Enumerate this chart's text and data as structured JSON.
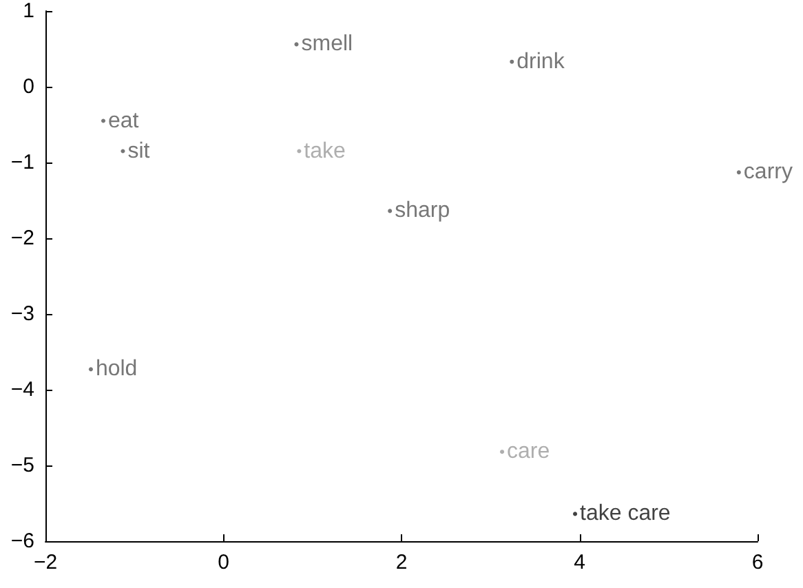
{
  "chart_data": {
    "type": "scatter",
    "marker": "circle",
    "grid": false,
    "legend": false,
    "xlim": [
      -2,
      6
    ],
    "xticks": [
      -2,
      0,
      2,
      4,
      6
    ],
    "ylim": [
      -6,
      1
    ],
    "yticks": [
      -6,
      -5,
      -4,
      -3,
      -2,
      -1,
      0,
      1
    ],
    "series": [
      {
        "name": "smell",
        "color": "#555555",
        "x": [
          0.82
        ],
        "values": [
          0.56
        ]
      },
      {
        "name": "drink",
        "color": "#555555",
        "x": [
          3.24
        ],
        "values": [
          0.33
        ]
      },
      {
        "name": "eat",
        "color": "#555555",
        "x": [
          -1.35
        ],
        "values": [
          -0.45
        ]
      },
      {
        "name": "sit",
        "color": "#555555",
        "x": [
          -1.13
        ],
        "values": [
          -0.85
        ]
      },
      {
        "name": "take",
        "color": "#9a9a9a",
        "x": [
          0.85
        ],
        "values": [
          -0.85
        ]
      },
      {
        "name": "carry",
        "color": "#555555",
        "x": [
          5.79
        ],
        "values": [
          -1.13
        ]
      },
      {
        "name": "sharp",
        "color": "#555555",
        "x": [
          1.87
        ],
        "values": [
          -1.64
        ]
      },
      {
        "name": "hold",
        "color": "#555555",
        "x": [
          -1.49
        ],
        "values": [
          -3.73
        ]
      },
      {
        "name": "care",
        "color": "#9a9a9a",
        "x": [
          3.13
        ],
        "values": [
          -4.82
        ]
      },
      {
        "name": "take care",
        "color": "#111111",
        "x": [
          3.95
        ],
        "values": [
          -5.64
        ]
      }
    ]
  }
}
